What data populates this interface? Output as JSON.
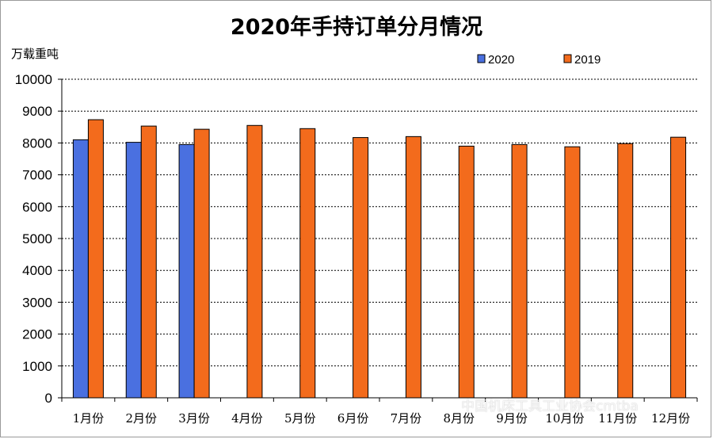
{
  "chart_data": {
    "type": "bar",
    "title": "2020年手持订单分月情况",
    "ylabel": "万载重吨",
    "xlabel": "",
    "ylim": [
      0,
      10000
    ],
    "yticks": [
      0,
      1000,
      2000,
      3000,
      4000,
      5000,
      6000,
      7000,
      8000,
      9000,
      10000
    ],
    "grid": true,
    "legend_position": "top-right",
    "categories": [
      "1月份",
      "2月份",
      "3月份",
      "4月份",
      "5月份",
      "6月份",
      "7月份",
      "8月份",
      "9月份",
      "10月份",
      "11月份",
      "12月份"
    ],
    "series": [
      {
        "name": "2020",
        "color": "#4a70e0",
        "values": [
          8100,
          8020,
          7950,
          null,
          null,
          null,
          null,
          null,
          null,
          null,
          null,
          null
        ]
      },
      {
        "name": "2019",
        "color": "#f36b1c",
        "values": [
          8730,
          8530,
          8430,
          8550,
          8450,
          8170,
          8200,
          7900,
          7950,
          7880,
          7980,
          8180
        ]
      }
    ]
  },
  "watermark": {
    "text": "中国机床工具工业协会cmtba",
    "icon": "wechat-icon"
  }
}
